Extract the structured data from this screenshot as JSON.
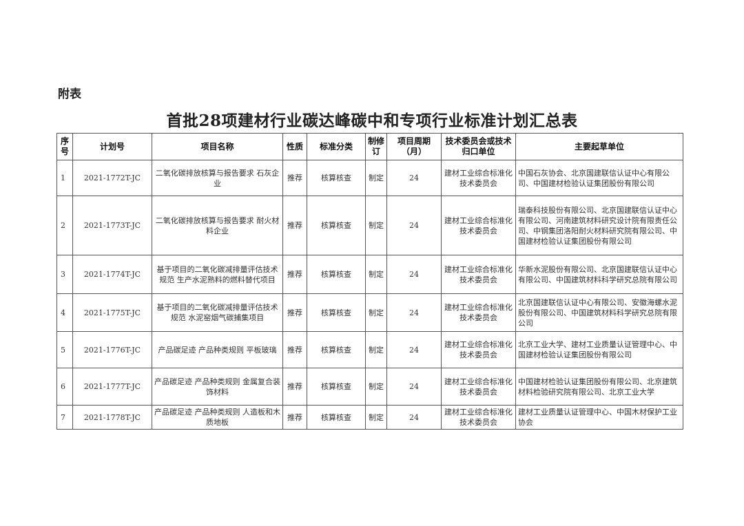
{
  "appendix_label": "附表",
  "title": "首批28项建材行业碳达峰碳中和专项行业标准计划汇总表",
  "table": {
    "headers": [
      "序号",
      "计划号",
      "项目名称",
      "性质",
      "标准分类",
      "制修订",
      "项目周期（月）",
      "技术委员会或技术归口单位",
      "主要起草单位"
    ],
    "rows": [
      [
        "1",
        "2021-1772T-JC",
        "二氧化碳排放核算与报告要求 石灰企业",
        "推荐",
        "核算核查",
        "制定",
        "24",
        "建材工业综合标准化技术委员会",
        "中国石灰协会、北京国建联信认证中心有限公司、中国建材检验认证集团股份有限公司"
      ],
      [
        "2",
        "2021-1773T-JC",
        "二氧化碳排放核算与报告要求 耐火材料企业",
        "推荐",
        "核算核查",
        "制定",
        "24",
        "建材工业综合标准化技术委员会",
        "瑞泰科技股份有限公司、北京国建联信认证中心有限公司、河南建筑材料研究设计院有限责任公司、中钢集团洛阳耐火材料研究院有限公司、中国建材检验认证集团股份有限公司"
      ],
      [
        "3",
        "2021-1774T-JC",
        "基于项目的二氧化碳减排量评估技术规范 生产水泥熟料的燃料替代项目",
        "推荐",
        "核算核查",
        "制定",
        "24",
        "建材工业综合标准化技术委员会",
        "华新水泥股份有限公司、北京国建联信认证中心有限公司、中国建筑材料科学研究总院有限公司"
      ],
      [
        "4",
        "2021-1775T-JC",
        "基于项目的二氧化碳减排量评估技术规范 水泥窑烟气碳捕集项目",
        "推荐",
        "核算核查",
        "制定",
        "24",
        "建材工业综合标准化技术委员会",
        "北京国建联信认证中心有限公司、安徽海螺水泥股份有限公司、中国建筑材料科学研究总院有限公司"
      ],
      [
        "5",
        "2021-1776T-JC",
        "产品碳足迹 产品种类规则 平板玻璃",
        "推荐",
        "核算核查",
        "制定",
        "24",
        "建材工业综合标准化技术委员会",
        "北京工业大学、建材工业质量认证管理中心、中国建材检验认证集团股份有限公司"
      ],
      [
        "6",
        "2021-1777T-JC",
        "产品碳足迹 产品种类规则 金属复合装饰材料",
        "推荐",
        "核算核查",
        "制定",
        "24",
        "建材工业综合标准化技术委员会",
        "中国建材检验认证集团股份有限公司、北京建筑材料检验研究院有限公司、北京工业大学"
      ],
      [
        "7",
        "2021-1778T-JC",
        "产品碳足迹 产品种类规则 人造板和木质地板",
        "推荐",
        "核算核查",
        "制定",
        "24",
        "建材工业综合标准化技术委员会",
        "建材工业质量认证管理中心、中国木材保护工业协会"
      ]
    ]
  }
}
